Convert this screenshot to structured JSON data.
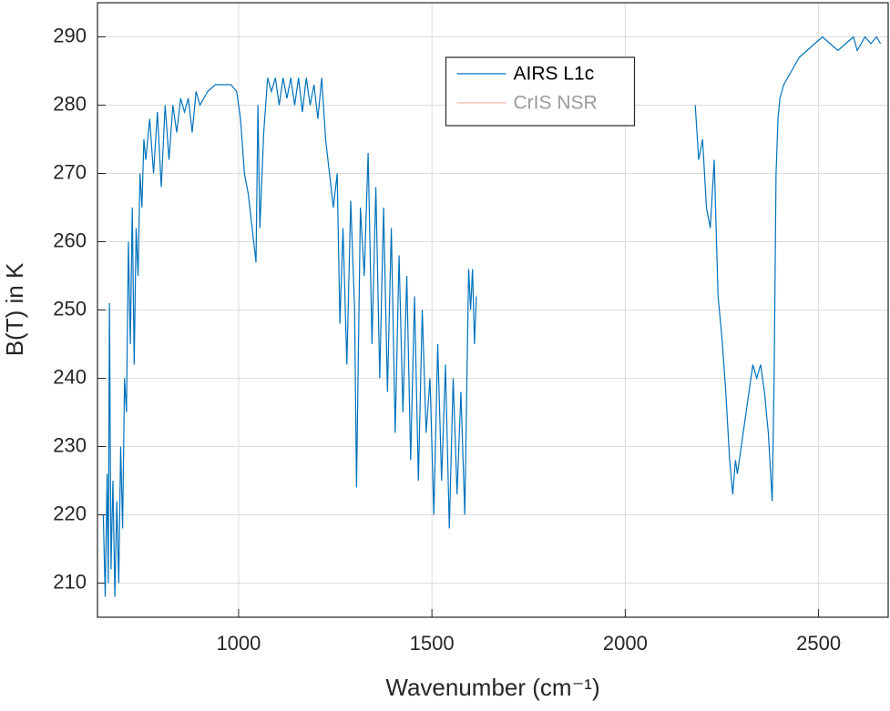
{
  "chart_data": {
    "type": "line",
    "xlabel": "Wavenumber (cm⁻¹)",
    "ylabel": "B(T) in K",
    "xlim": [
      635,
      2680
    ],
    "ylim": [
      205,
      295
    ],
    "xticks": [
      1000,
      1500,
      2000,
      2500
    ],
    "yticks": [
      210,
      220,
      230,
      240,
      250,
      260,
      270,
      280,
      290
    ],
    "grid": true,
    "legend": "north",
    "x": [
      650,
      655,
      660,
      663,
      666,
      670,
      675,
      680,
      685,
      690,
      695,
      700,
      705,
      710,
      715,
      720,
      725,
      730,
      735,
      740,
      745,
      750,
      755,
      760,
      770,
      780,
      790,
      800,
      810,
      820,
      830,
      840,
      850,
      860,
      870,
      880,
      890,
      900,
      920,
      940,
      960,
      980,
      995,
      1005,
      1015,
      1025,
      1035,
      1045,
      1050,
      1055,
      1065,
      1075,
      1085,
      1095,
      1105,
      1115,
      1125,
      1135,
      1145,
      1155,
      1165,
      1175,
      1185,
      1195,
      1205,
      1215,
      1225,
      1235,
      1245,
      1255,
      1262,
      1270,
      1280,
      1290,
      1300,
      1305,
      1315,
      1325,
      1335,
      1345,
      1355,
      1365,
      1375,
      1385,
      1395,
      1405,
      1415,
      1425,
      1435,
      1445,
      1455,
      1465,
      1475,
      1485,
      1495,
      1505,
      1515,
      1525,
      1535,
      1545,
      1555,
      1565,
      1575,
      1585,
      1595,
      1600,
      1605,
      1610,
      1615,
      1900,
      2181,
      2190,
      2200,
      2210,
      2220,
      2230,
      2240,
      2250,
      2260,
      2270,
      2278,
      2285,
      2290,
      2300,
      2310,
      2320,
      2330,
      2340,
      2350,
      2360,
      2370,
      2380,
      2385,
      2390,
      2395,
      2400,
      2410,
      2430,
      2450,
      2470,
      2490,
      2510,
      2530,
      2550,
      2570,
      2590,
      2600,
      2620,
      2635,
      2650,
      2660
    ],
    "series": [
      {
        "name": "AIRS L1c",
        "color": "#0072bd",
        "values": [
          220,
          208,
          226,
          210,
          251,
          212,
          225,
          208,
          222,
          210,
          230,
          218,
          240,
          235,
          260,
          245,
          265,
          242,
          262,
          255,
          270,
          265,
          275,
          272,
          278,
          270,
          279,
          268,
          280,
          272,
          280,
          276,
          281,
          279,
          281,
          276,
          282,
          280,
          282,
          283,
          283,
          283,
          282,
          278,
          270,
          267,
          262,
          257,
          280,
          262,
          276,
          284,
          282,
          284,
          280,
          284,
          281,
          284,
          280,
          284,
          279,
          284,
          280,
          283,
          278,
          284,
          275,
          270,
          265,
          270,
          248,
          262,
          242,
          266,
          250,
          224,
          265,
          255,
          273,
          245,
          268,
          240,
          265,
          238,
          262,
          232,
          258,
          235,
          255,
          228,
          252,
          225,
          250,
          232,
          240,
          220,
          245,
          225,
          242,
          218,
          240,
          223,
          238,
          220,
          256,
          250,
          256,
          245,
          252,
          null,
          280,
          272,
          275,
          265,
          262,
          272,
          252,
          246,
          238,
          228,
          223,
          228,
          226,
          230,
          234,
          238,
          242,
          240,
          242,
          238,
          232,
          222,
          240,
          270,
          278,
          281,
          283,
          285,
          287,
          288,
          289,
          290,
          289,
          288,
          289,
          290,
          288,
          290,
          289,
          290,
          289
        ]
      },
      {
        "name": "CrIS NSR",
        "color": "#d95319",
        "values": [
          null,
          null,
          null,
          null,
          null,
          null,
          null,
          null,
          null,
          null,
          null,
          null,
          null,
          null,
          null,
          null,
          null,
          null,
          null,
          null,
          null,
          null,
          null,
          null,
          null,
          null,
          null,
          null,
          null,
          null,
          null,
          null,
          null,
          null,
          null,
          null,
          null,
          null,
          null,
          null,
          null,
          null,
          null,
          null,
          null,
          null,
          null,
          null,
          null,
          null,
          null,
          null,
          null,
          null,
          null,
          null,
          null,
          null,
          null,
          null,
          null,
          null,
          null,
          null,
          null,
          null,
          null,
          null,
          null,
          null,
          null,
          null,
          null,
          null,
          null,
          null,
          null,
          null,
          null,
          null,
          null,
          null,
          null,
          null,
          null,
          null,
          null,
          null,
          null,
          null,
          null,
          null,
          null,
          null,
          null,
          null,
          null,
          null,
          null,
          null,
          null,
          null,
          null,
          null,
          null,
          null,
          null,
          null,
          null,
          null,
          null,
          null,
          null,
          null,
          null,
          null,
          null,
          null,
          null,
          null,
          null,
          null,
          null,
          null,
          null,
          null,
          null,
          null,
          null,
          null,
          null,
          null,
          null,
          null,
          null,
          null,
          null,
          null,
          null,
          null,
          null,
          null,
          null,
          null,
          null,
          null,
          null,
          null,
          null,
          null,
          null
        ]
      }
    ]
  }
}
